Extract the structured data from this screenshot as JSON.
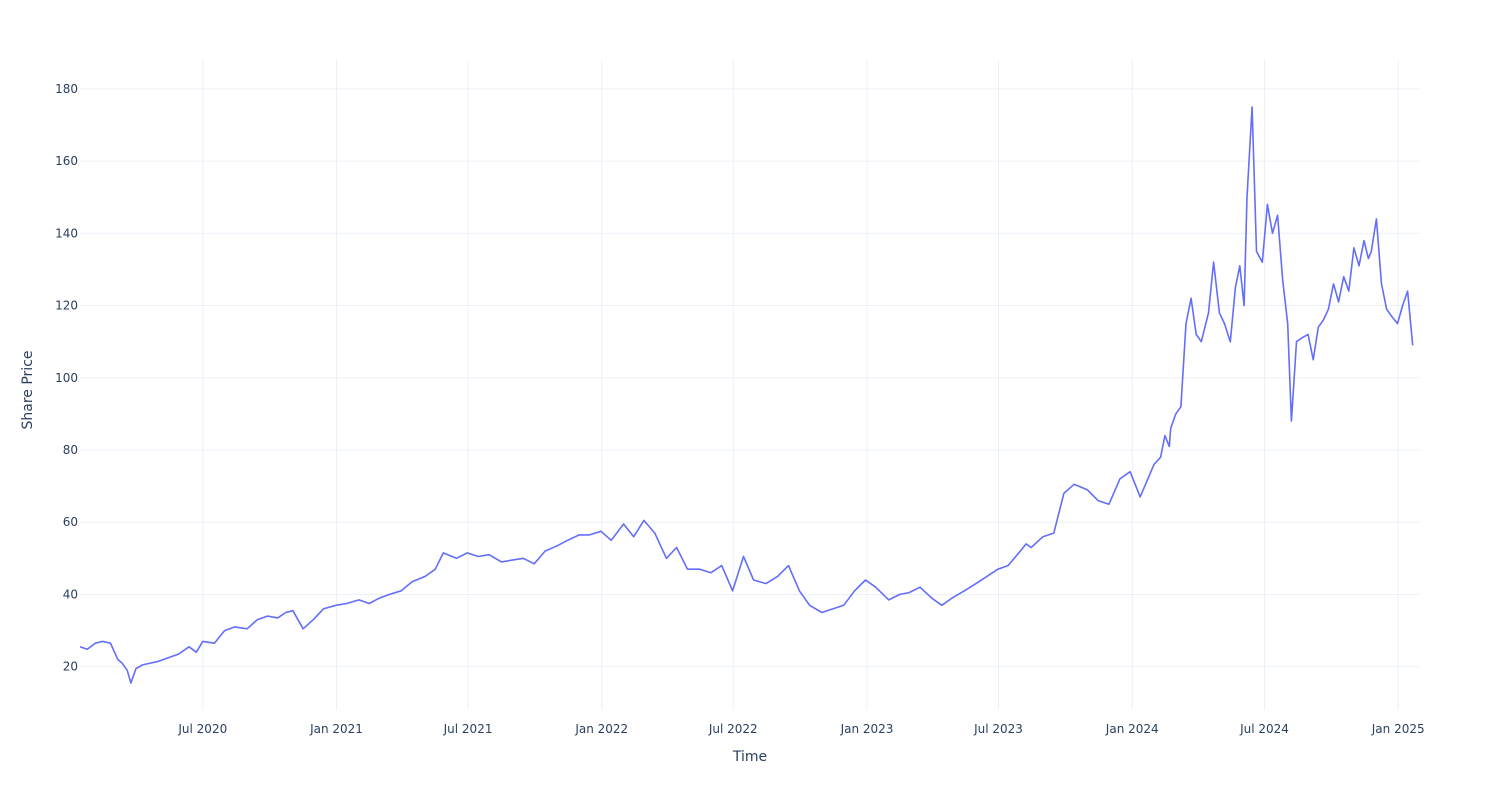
{
  "chart_data": {
    "type": "line",
    "title": "",
    "xlabel": "Time",
    "ylabel": "Share Price",
    "xlim": [
      "2020-01-14",
      "2025-01-31"
    ],
    "ylim": [
      8,
      188
    ],
    "grid": true,
    "legend": "none",
    "line_color": "#636efa",
    "x_ticks": [
      {
        "date": "2020-07-01",
        "label": "Jul 2020"
      },
      {
        "date": "2021-01-01",
        "label": "Jan 2021"
      },
      {
        "date": "2021-07-01",
        "label": "Jul 2021"
      },
      {
        "date": "2022-01-01",
        "label": "Jan 2022"
      },
      {
        "date": "2022-07-01",
        "label": "Jul 2022"
      },
      {
        "date": "2023-01-01",
        "label": "Jan 2023"
      },
      {
        "date": "2023-07-01",
        "label": "Jul 2023"
      },
      {
        "date": "2024-01-01",
        "label": "Jan 2024"
      },
      {
        "date": "2024-07-01",
        "label": "Jul 2024"
      },
      {
        "date": "2025-01-01",
        "label": "Jan 2025"
      }
    ],
    "y_ticks": [
      20,
      40,
      60,
      80,
      100,
      120,
      140,
      160,
      180
    ],
    "series": [
      {
        "x": [
          "2020-01-14",
          "2020-01-24",
          "2020-02-04",
          "2020-02-14",
          "2020-02-25",
          "2020-03-06",
          "2020-03-12",
          "2020-03-19",
          "2020-03-24",
          "2020-03-31",
          "2020-04-09",
          "2020-04-20",
          "2020-05-01",
          "2020-05-15",
          "2020-05-29",
          "2020-06-12",
          "2020-06-22",
          "2020-07-01",
          "2020-07-17",
          "2020-07-31",
          "2020-08-14",
          "2020-08-31",
          "2020-09-14",
          "2020-09-28",
          "2020-10-12",
          "2020-10-23",
          "2020-11-02",
          "2020-11-16",
          "2020-11-30",
          "2020-12-14",
          "2020-12-31",
          "2021-01-15",
          "2021-02-01",
          "2021-02-15",
          "2021-03-01",
          "2021-03-15",
          "2021-03-31",
          "2021-04-15",
          "2021-05-03",
          "2021-05-17",
          "2021-05-28",
          "2021-06-15",
          "2021-06-30",
          "2021-07-15",
          "2021-07-30",
          "2021-08-16",
          "2021-08-31",
          "2021-09-15",
          "2021-09-30",
          "2021-10-15",
          "2021-11-01",
          "2021-11-15",
          "2021-12-01",
          "2021-12-15",
          "2021-12-31",
          "2022-01-14",
          "2022-01-31",
          "2022-02-14",
          "2022-02-28",
          "2022-03-15",
          "2022-03-31",
          "2022-04-14",
          "2022-04-29",
          "2022-05-16",
          "2022-05-31",
          "2022-06-15",
          "2022-06-30",
          "2022-07-15",
          "2022-07-29",
          "2022-08-15",
          "2022-08-31",
          "2022-09-15",
          "2022-09-30",
          "2022-10-14",
          "2022-10-31",
          "2022-11-15",
          "2022-11-30",
          "2022-12-15",
          "2022-12-30",
          "2023-01-13",
          "2023-01-31",
          "2023-02-15",
          "2023-02-28",
          "2023-03-15",
          "2023-03-31",
          "2023-04-14",
          "2023-04-28",
          "2023-05-15",
          "2023-05-31",
          "2023-06-15",
          "2023-06-30",
          "2023-07-14",
          "2023-07-31",
          "2023-08-08",
          "2023-08-15",
          "2023-08-31",
          "2023-09-15",
          "2023-09-29",
          "2023-10-13",
          "2023-10-31",
          "2023-11-15",
          "2023-11-30",
          "2023-12-15",
          "2023-12-29",
          "2024-01-12",
          "2024-01-31",
          "2024-02-09",
          "2024-02-15",
          "2024-02-21",
          "2024-02-23",
          "2024-03-01",
          "2024-03-08",
          "2024-03-15",
          "2024-03-22",
          "2024-03-29",
          "2024-04-05",
          "2024-04-15",
          "2024-04-22",
          "2024-04-30",
          "2024-05-07",
          "2024-05-15",
          "2024-05-22",
          "2024-05-28",
          "2024-06-03",
          "2024-06-07",
          "2024-06-14",
          "2024-06-20",
          "2024-06-28",
          "2024-07-05",
          "2024-07-12",
          "2024-07-19",
          "2024-07-26",
          "2024-08-02",
          "2024-08-07",
          "2024-08-14",
          "2024-08-21",
          "2024-08-30",
          "2024-09-06",
          "2024-09-13",
          "2024-09-20",
          "2024-09-27",
          "2024-10-04",
          "2024-10-11",
          "2024-10-18",
          "2024-10-25",
          "2024-11-01",
          "2024-11-08",
          "2024-11-15",
          "2024-11-21",
          "2024-11-25",
          "2024-12-02",
          "2024-12-09",
          "2024-12-16",
          "2024-12-23",
          "2024-12-31",
          "2025-01-07",
          "2025-01-14",
          "2025-01-21"
        ],
        "y": [
          25.5,
          24.8,
          26.5,
          27,
          26.5,
          22,
          21,
          19,
          15.5,
          19.5,
          20.5,
          21,
          21.5,
          22.5,
          23.5,
          25.5,
          24,
          27,
          26.5,
          30,
          31,
          30.5,
          33,
          34,
          33.5,
          35,
          35.5,
          30.5,
          33,
          36,
          37,
          37.5,
          38.5,
          37.5,
          39,
          40,
          41,
          43.5,
          45,
          47,
          51.5,
          50,
          51.5,
          50.5,
          51,
          49,
          49.5,
          50,
          48.5,
          52,
          53.5,
          55,
          56.5,
          56.5,
          57.5,
          55,
          59.5,
          56,
          60.5,
          57,
          50,
          53,
          47,
          47,
          46,
          48,
          41,
          50.5,
          44,
          43,
          45,
          48,
          41,
          37,
          35,
          36,
          37,
          41,
          44,
          42,
          38.5,
          40,
          40.5,
          42,
          39,
          37,
          39,
          41,
          43,
          45,
          47,
          48,
          52,
          54,
          53,
          56,
          57,
          68,
          70.5,
          69,
          66,
          65,
          72,
          74,
          67,
          76,
          78,
          84,
          81,
          86,
          90,
          92,
          115,
          122,
          112,
          110,
          118,
          132,
          118,
          115,
          110,
          125,
          131,
          120,
          150,
          175,
          135,
          132,
          148,
          140,
          145,
          127,
          115,
          88,
          110,
          111,
          112,
          105,
          114,
          116,
          119,
          126,
          121,
          128,
          124,
          136,
          131,
          138,
          133,
          135,
          144,
          126,
          119,
          117,
          115,
          120,
          124,
          109
        ]
      }
    ]
  }
}
